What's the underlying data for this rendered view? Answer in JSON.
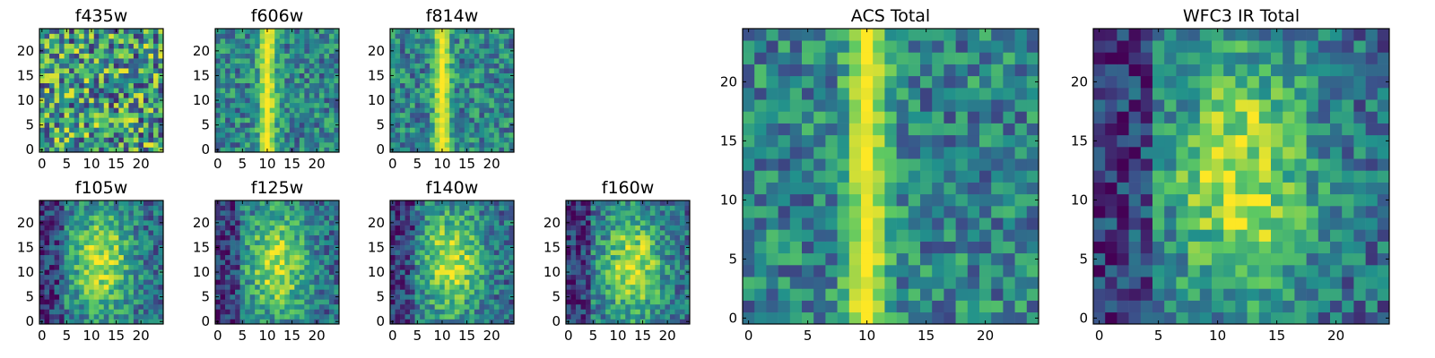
{
  "chart_data": [
    {
      "type": "heatmap",
      "title": "f435w",
      "grid_size": 25,
      "pattern": "noise",
      "xlim": [
        0,
        24
      ],
      "ylim": [
        0,
        24
      ],
      "xticks": [
        "0",
        "5",
        "10",
        "15",
        "20"
      ],
      "yticks": [
        "0",
        "5",
        "10",
        "15",
        "20"
      ]
    },
    {
      "type": "heatmap",
      "title": "f606w",
      "grid_size": 25,
      "pattern": "stripe",
      "stripe_center": 10,
      "xlim": [
        0,
        24
      ],
      "ylim": [
        0,
        24
      ],
      "xticks": [
        "0",
        "5",
        "10",
        "15",
        "20"
      ],
      "yticks": [
        "0",
        "5",
        "10",
        "15",
        "20"
      ]
    },
    {
      "type": "heatmap",
      "title": "f814w",
      "grid_size": 25,
      "pattern": "stripe",
      "stripe_center": 10,
      "xlim": [
        0,
        24
      ],
      "ylim": [
        0,
        24
      ],
      "xticks": [
        "0",
        "5",
        "10",
        "15",
        "20"
      ],
      "yticks": [
        "0",
        "5",
        "10",
        "15",
        "20"
      ]
    },
    {
      "type": "heatmap",
      "title": "f105w",
      "grid_size": 25,
      "pattern": "blob",
      "blob_center": [
        12,
        12
      ],
      "xlim": [
        0,
        24
      ],
      "ylim": [
        0,
        24
      ],
      "xticks": [
        "0",
        "5",
        "10",
        "15",
        "20"
      ],
      "yticks": [
        "0",
        "5",
        "10",
        "15",
        "20"
      ]
    },
    {
      "type": "heatmap",
      "title": "f125w",
      "grid_size": 25,
      "pattern": "blob",
      "blob_center": [
        12,
        12
      ],
      "xlim": [
        0,
        24
      ],
      "ylim": [
        0,
        24
      ],
      "xticks": [
        "0",
        "5",
        "10",
        "15",
        "20"
      ],
      "yticks": [
        "0",
        "5",
        "10",
        "15",
        "20"
      ]
    },
    {
      "type": "heatmap",
      "title": "f140w",
      "grid_size": 25,
      "pattern": "blob",
      "blob_center": [
        12,
        12
      ],
      "xlim": [
        0,
        24
      ],
      "ylim": [
        0,
        24
      ],
      "xticks": [
        "0",
        "5",
        "10",
        "15",
        "20"
      ],
      "yticks": [
        "0",
        "5",
        "10",
        "15",
        "20"
      ]
    },
    {
      "type": "heatmap",
      "title": "f160w",
      "grid_size": 25,
      "pattern": "blob",
      "blob_center": [
        13,
        11
      ],
      "xlim": [
        0,
        24
      ],
      "ylim": [
        0,
        24
      ],
      "xticks": [
        "0",
        "5",
        "10",
        "15",
        "20"
      ],
      "yticks": [
        "0",
        "5",
        "10",
        "15",
        "20"
      ]
    },
    {
      "type": "heatmap",
      "title": "ACS Total",
      "grid_size": 25,
      "pattern": "stripe",
      "stripe_center": 10,
      "xlim": [
        0,
        24
      ],
      "ylim": [
        0,
        24
      ],
      "xticks": [
        "0",
        "5",
        "10",
        "15",
        "20"
      ],
      "yticks": [
        "0",
        "5",
        "10",
        "15",
        "20"
      ]
    },
    {
      "type": "heatmap",
      "title": "WFC3 IR Total",
      "grid_size": 25,
      "pattern": "blob",
      "blob_center": [
        12,
        12
      ],
      "xlim": [
        0,
        24
      ],
      "ylim": [
        0,
        24
      ],
      "xticks": [
        "0",
        "5",
        "10",
        "15",
        "20"
      ],
      "yticks": [
        "0",
        "5",
        "10",
        "15",
        "20"
      ]
    }
  ],
  "colormap": [
    "#440154",
    "#3b528b",
    "#21918c",
    "#5ec962",
    "#fde725"
  ]
}
